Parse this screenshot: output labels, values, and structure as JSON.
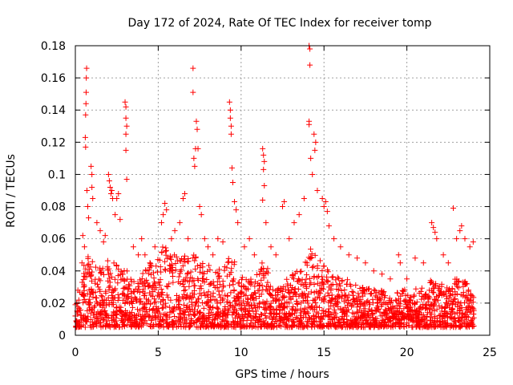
{
  "chart_data": {
    "type": "scatter",
    "title": "Day 172 of 2024, Rate Of TEC Index for receiver tomp",
    "xlabel": "GPS time / hours",
    "ylabel": "ROTI / TECUs",
    "xlim": [
      0,
      25
    ],
    "ylim": [
      0,
      0.18
    ],
    "xticks": [
      0,
      5,
      10,
      15,
      20,
      25
    ],
    "xtick_labels": [
      "0",
      "5",
      "10",
      "15",
      "20",
      "25"
    ],
    "yticks": [
      0,
      0.02,
      0.04,
      0.06,
      0.08,
      0.1,
      0.12,
      0.14,
      0.16,
      0.18
    ],
    "ytick_labels": [
      "0",
      "0.02",
      "0.04",
      "0.06",
      "0.08",
      "0.1",
      "0.12",
      "0.14",
      "0.16",
      "0.18"
    ],
    "grid": true,
    "marker": "+",
    "marker_color": "#ff0000",
    "series": [
      {
        "name": "ROTI",
        "points": [
          [
            0.0,
            0.019
          ],
          [
            0.0,
            0.012
          ],
          [
            0.05,
            0.009
          ],
          [
            0.1,
            0.02
          ],
          [
            0.1,
            0.015
          ],
          [
            0.15,
            0.008
          ],
          [
            0.4,
            0.045
          ],
          [
            0.45,
            0.062
          ],
          [
            0.5,
            0.03
          ],
          [
            0.55,
            0.055
          ],
          [
            0.6,
            0.123
          ],
          [
            0.62,
            0.137
          ],
          [
            0.64,
            0.144
          ],
          [
            0.65,
            0.151
          ],
          [
            0.66,
            0.16
          ],
          [
            0.68,
            0.166
          ],
          [
            0.62,
            0.117
          ],
          [
            0.7,
            0.09
          ],
          [
            0.75,
            0.08
          ],
          [
            0.8,
            0.073
          ],
          [
            0.95,
            0.105
          ],
          [
            1.0,
            0.1
          ],
          [
            1.0,
            0.092
          ],
          [
            1.05,
            0.085
          ],
          [
            1.3,
            0.07
          ],
          [
            1.5,
            0.065
          ],
          [
            1.7,
            0.058
          ],
          [
            1.8,
            0.062
          ],
          [
            2.0,
            0.1
          ],
          [
            2.05,
            0.096
          ],
          [
            2.1,
            0.092
          ],
          [
            2.15,
            0.088
          ],
          [
            2.2,
            0.09
          ],
          [
            2.25,
            0.085
          ],
          [
            2.4,
            0.075
          ],
          [
            2.5,
            0.085
          ],
          [
            2.6,
            0.088
          ],
          [
            2.7,
            0.072
          ],
          [
            3.0,
            0.145
          ],
          [
            3.05,
            0.142
          ],
          [
            3.05,
            0.135
          ],
          [
            3.1,
            0.13
          ],
          [
            3.05,
            0.125
          ],
          [
            3.05,
            0.115
          ],
          [
            3.1,
            0.097
          ],
          [
            3.5,
            0.055
          ],
          [
            3.8,
            0.05
          ],
          [
            4.0,
            0.06
          ],
          [
            4.2,
            0.05
          ],
          [
            4.5,
            0.045
          ],
          [
            4.8,
            0.055
          ],
          [
            5.2,
            0.07
          ],
          [
            5.3,
            0.075
          ],
          [
            5.4,
            0.082
          ],
          [
            5.5,
            0.078
          ],
          [
            5.8,
            0.06
          ],
          [
            6.0,
            0.065
          ],
          [
            6.3,
            0.07
          ],
          [
            6.5,
            0.085
          ],
          [
            6.6,
            0.088
          ],
          [
            6.8,
            0.06
          ],
          [
            7.1,
            0.166
          ],
          [
            7.1,
            0.151
          ],
          [
            7.15,
            0.11
          ],
          [
            7.2,
            0.105
          ],
          [
            7.25,
            0.116
          ],
          [
            7.3,
            0.133
          ],
          [
            7.35,
            0.128
          ],
          [
            7.4,
            0.116
          ],
          [
            7.5,
            0.08
          ],
          [
            7.6,
            0.075
          ],
          [
            7.8,
            0.06
          ],
          [
            8.0,
            0.055
          ],
          [
            8.3,
            0.05
          ],
          [
            8.6,
            0.06
          ],
          [
            8.9,
            0.058
          ],
          [
            9.3,
            0.145
          ],
          [
            9.35,
            0.14
          ],
          [
            9.35,
            0.135
          ],
          [
            9.4,
            0.13
          ],
          [
            9.4,
            0.125
          ],
          [
            9.45,
            0.104
          ],
          [
            9.5,
            0.095
          ],
          [
            9.6,
            0.083
          ],
          [
            9.7,
            0.078
          ],
          [
            9.8,
            0.07
          ],
          [
            10.2,
            0.055
          ],
          [
            10.5,
            0.06
          ],
          [
            10.8,
            0.05
          ],
          [
            11.3,
            0.116
          ],
          [
            11.35,
            0.112
          ],
          [
            11.4,
            0.108
          ],
          [
            11.35,
            0.103
          ],
          [
            11.4,
            0.093
          ],
          [
            11.3,
            0.084
          ],
          [
            11.5,
            0.07
          ],
          [
            11.8,
            0.055
          ],
          [
            12.1,
            0.05
          ],
          [
            12.5,
            0.08
          ],
          [
            12.6,
            0.083
          ],
          [
            12.9,
            0.06
          ],
          [
            13.2,
            0.07
          ],
          [
            13.5,
            0.075
          ],
          [
            13.8,
            0.085
          ],
          [
            14.1,
            0.18
          ],
          [
            14.15,
            0.178
          ],
          [
            14.15,
            0.168
          ],
          [
            14.1,
            0.133
          ],
          [
            14.1,
            0.131
          ],
          [
            14.2,
            0.11
          ],
          [
            14.3,
            0.1
          ],
          [
            14.4,
            0.125
          ],
          [
            14.5,
            0.12
          ],
          [
            14.45,
            0.115
          ],
          [
            14.6,
            0.09
          ],
          [
            14.9,
            0.085
          ],
          [
            15.0,
            0.08
          ],
          [
            15.1,
            0.083
          ],
          [
            15.2,
            0.077
          ],
          [
            15.3,
            0.068
          ],
          [
            15.6,
            0.06
          ],
          [
            16.0,
            0.055
          ],
          [
            16.5,
            0.05
          ],
          [
            17.0,
            0.048
          ],
          [
            17.5,
            0.045
          ],
          [
            18.0,
            0.04
          ],
          [
            18.5,
            0.038
          ],
          [
            19.0,
            0.035
          ],
          [
            19.5,
            0.05
          ],
          [
            19.6,
            0.045
          ],
          [
            20.0,
            0.035
          ],
          [
            20.5,
            0.048
          ],
          [
            21.0,
            0.045
          ],
          [
            21.5,
            0.07
          ],
          [
            21.6,
            0.067
          ],
          [
            21.7,
            0.064
          ],
          [
            21.8,
            0.06
          ],
          [
            22.2,
            0.05
          ],
          [
            22.5,
            0.045
          ],
          [
            22.8,
            0.079
          ],
          [
            23.0,
            0.06
          ],
          [
            23.2,
            0.065
          ],
          [
            23.3,
            0.068
          ],
          [
            23.5,
            0.06
          ],
          [
            23.8,
            0.055
          ],
          [
            24.0,
            0.058
          ]
        ],
        "density_envelope": {
          "description": "Dense band of ROTI samples between ~0.005 and the envelope value, sampled every 0.25 h",
          "x": [
            0.0,
            0.25,
            0.5,
            0.75,
            1.0,
            1.25,
            1.5,
            1.75,
            2.0,
            2.25,
            2.5,
            2.75,
            3.0,
            3.25,
            3.5,
            3.75,
            4.0,
            4.25,
            4.5,
            4.75,
            5.0,
            5.25,
            5.5,
            5.75,
            6.0,
            6.25,
            6.5,
            6.75,
            7.0,
            7.25,
            7.5,
            7.75,
            8.0,
            8.25,
            8.5,
            8.75,
            9.0,
            9.25,
            9.5,
            9.75,
            10.0,
            10.25,
            10.5,
            10.75,
            11.0,
            11.25,
            11.5,
            11.75,
            12.0,
            12.25,
            12.5,
            12.75,
            13.0,
            13.25,
            13.5,
            13.75,
            14.0,
            14.25,
            14.5,
            14.75,
            15.0,
            15.25,
            15.5,
            15.75,
            16.0,
            16.25,
            16.5,
            16.75,
            17.0,
            17.25,
            17.5,
            17.75,
            18.0,
            18.25,
            18.5,
            18.75,
            19.0,
            19.25,
            19.5,
            19.75,
            20.0,
            20.25,
            20.5,
            20.75,
            21.0,
            21.25,
            21.5,
            21.75,
            22.0,
            22.25,
            22.5,
            22.75,
            23.0,
            23.25,
            23.5,
            23.75,
            24.0
          ],
          "upper": [
            0.022,
            0.03,
            0.045,
            0.05,
            0.048,
            0.045,
            0.042,
            0.045,
            0.05,
            0.05,
            0.045,
            0.04,
            0.042,
            0.038,
            0.036,
            0.038,
            0.04,
            0.042,
            0.045,
            0.048,
            0.05,
            0.055,
            0.055,
            0.05,
            0.05,
            0.05,
            0.052,
            0.05,
            0.05,
            0.052,
            0.048,
            0.045,
            0.045,
            0.042,
            0.04,
            0.042,
            0.045,
            0.05,
            0.048,
            0.042,
            0.038,
            0.036,
            0.035,
            0.036,
            0.04,
            0.045,
            0.042,
            0.035,
            0.03,
            0.03,
            0.032,
            0.035,
            0.038,
            0.04,
            0.042,
            0.045,
            0.05,
            0.055,
            0.05,
            0.048,
            0.045,
            0.042,
            0.04,
            0.038,
            0.036,
            0.035,
            0.035,
            0.034,
            0.033,
            0.032,
            0.03,
            0.03,
            0.03,
            0.028,
            0.028,
            0.026,
            0.025,
            0.024,
            0.028,
            0.03,
            0.025,
            0.024,
            0.03,
            0.03,
            0.03,
            0.028,
            0.035,
            0.035,
            0.032,
            0.03,
            0.03,
            0.032,
            0.035,
            0.035,
            0.035,
            0.032,
            0.025
          ]
        }
      }
    ]
  }
}
